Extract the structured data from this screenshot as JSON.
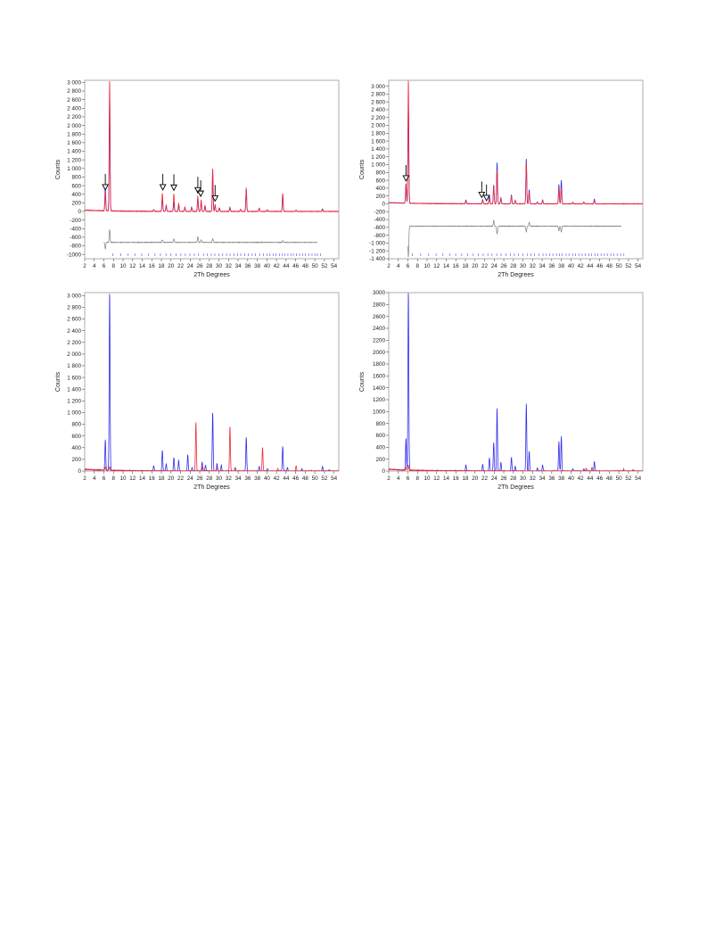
{
  "colors": {
    "calc": "#3030e8",
    "obs": "#ec2a3a",
    "diff": "#808080",
    "ticks": "#4a4aee",
    "frame": "#000000"
  },
  "chart_data": [
    {
      "type": "line",
      "xlabel": "2Th Degrees",
      "ylabel": "Counts",
      "xlim": [
        2,
        55
      ],
      "ylim": [
        -1100,
        3050
      ],
      "xticks": [
        "2",
        "4",
        "6",
        "8",
        "10",
        "12",
        "14",
        "16",
        "18",
        "20",
        "22",
        "24",
        "26",
        "28",
        "30",
        "32",
        "34",
        "36",
        "38",
        "40",
        "42",
        "44",
        "46",
        "48",
        "50",
        "52",
        "54"
      ],
      "yticks": [
        "3 000",
        "2 800",
        "2 600",
        "2 400",
        "2 200",
        "2 000",
        "1 800",
        "1 600",
        "1 400",
        "1 200",
        "1 000",
        "800",
        "600",
        "400",
        "200",
        "0",
        "-200",
        "-400",
        "-600",
        "-800",
        "-1000"
      ],
      "ytick_values": [
        3000,
        2800,
        2600,
        2400,
        2200,
        2000,
        1800,
        1600,
        1400,
        1200,
        1000,
        800,
        600,
        400,
        200,
        0,
        -200,
        -400,
        -600,
        -800,
        -1000
      ],
      "grid": false,
      "series": [
        {
          "role": "obs",
          "peaks": [
            [
              6.3,
              420
            ],
            [
              7.2,
              3050
            ],
            [
              16.4,
              30
            ],
            [
              18.2,
              420
            ],
            [
              19.0,
              150
            ],
            [
              20.6,
              410
            ],
            [
              21.6,
              180
            ],
            [
              22.9,
              100
            ],
            [
              24.3,
              80
            ],
            [
              25.6,
              350
            ],
            [
              26.3,
              270
            ],
            [
              27.1,
              140
            ],
            [
              28.7,
              1000
            ],
            [
              29.2,
              160
            ],
            [
              30.1,
              90
            ],
            [
              32.3,
              100
            ],
            [
              34.5,
              50
            ],
            [
              35.7,
              550
            ],
            [
              38.4,
              80
            ],
            [
              40.1,
              40
            ],
            [
              43.3,
              420
            ],
            [
              46.1,
              30
            ],
            [
              51.6,
              40
            ]
          ]
        },
        {
          "role": "calc",
          "peaks": [
            [
              6.3,
              560
            ],
            [
              7.2,
              2600
            ],
            [
              16.4,
              40
            ],
            [
              18.2,
              300
            ],
            [
              19.0,
              120
            ],
            [
              20.6,
              200
            ],
            [
              21.6,
              140
            ],
            [
              22.9,
              90
            ],
            [
              24.3,
              100
            ],
            [
              25.6,
              300
            ],
            [
              26.3,
              220
            ],
            [
              27.1,
              130
            ],
            [
              28.7,
              900
            ],
            [
              29.2,
              140
            ],
            [
              30.1,
              80
            ],
            [
              32.3,
              80
            ],
            [
              34.5,
              40
            ],
            [
              35.7,
              500
            ],
            [
              38.4,
              60
            ],
            [
              40.1,
              30
            ],
            [
              43.3,
              380
            ],
            [
              46.1,
              30
            ],
            [
              51.6,
              60
            ]
          ]
        }
      ],
      "diff_baseline": -720,
      "diff_peaks": [
        [
          6.3,
          -150
        ],
        [
          7.2,
          300
        ],
        [
          18.2,
          60
        ],
        [
          20.6,
          80
        ],
        [
          25.6,
          130
        ],
        [
          26.3,
          60
        ],
        [
          28.7,
          90
        ],
        [
          43.3,
          40
        ]
      ],
      "tick_range": [
        6,
        51
      ],
      "arrows": [
        6.3,
        18.3,
        20.6,
        25.6,
        26.2,
        29.2
      ]
    },
    {
      "type": "line",
      "xlabel": "2Th Degrees",
      "ylabel": "Counts",
      "xlim": [
        2,
        55
      ],
      "ylim": [
        -1400,
        3150
      ],
      "xticks": [
        "2",
        "4",
        "6",
        "8",
        "10",
        "12",
        "14",
        "16",
        "18",
        "20",
        "22",
        "24",
        "26",
        "28",
        "30",
        "32",
        "34",
        "36",
        "38",
        "40",
        "42",
        "44",
        "46",
        "48",
        "50",
        "52",
        "54"
      ],
      "yticks": [
        "3 000",
        "2 800",
        "2 600",
        "2 400",
        "2 200",
        "2 000",
        "1 800",
        "1 600",
        "1 400",
        "1 200",
        "1 000",
        "800",
        "600",
        "400",
        "200",
        "0",
        "-200",
        "-400",
        "-600",
        "-800",
        "-1 000",
        "-1 200",
        "-1 400"
      ],
      "ytick_values": [
        3000,
        2800,
        2600,
        2400,
        2200,
        2000,
        1800,
        1600,
        1400,
        1200,
        1000,
        800,
        600,
        400,
        200,
        0,
        -200,
        -400,
        -600,
        -800,
        -1000,
        -1200,
        -1400
      ],
      "grid": false,
      "series": [
        {
          "role": "obs",
          "peaks": [
            [
              5.6,
              500
            ],
            [
              6.1,
              3150
            ],
            [
              18.1,
              70
            ],
            [
              21.6,
              80
            ],
            [
              23.0,
              120
            ],
            [
              23.9,
              460
            ],
            [
              24.6,
              850
            ],
            [
              25.4,
              110
            ],
            [
              27.6,
              200
            ],
            [
              28.4,
              90
            ],
            [
              30.7,
              1050
            ],
            [
              31.3,
              300
            ],
            [
              33.0,
              40
            ],
            [
              34.1,
              80
            ],
            [
              37.5,
              400
            ],
            [
              38.0,
              400
            ],
            [
              40.4,
              30
            ],
            [
              42.7,
              40
            ],
            [
              44.9,
              80
            ]
          ]
        },
        {
          "role": "calc",
          "peaks": [
            [
              5.6,
              480
            ],
            [
              6.1,
              2500
            ],
            [
              18.1,
              100
            ],
            [
              21.6,
              110
            ],
            [
              23.0,
              220
            ],
            [
              23.9,
              480
            ],
            [
              24.6,
              1050
            ],
            [
              25.4,
              150
            ],
            [
              27.6,
              230
            ],
            [
              28.4,
              80
            ],
            [
              30.7,
              1150
            ],
            [
              31.3,
              360
            ],
            [
              33.0,
              50
            ],
            [
              34.1,
              100
            ],
            [
              37.5,
              500
            ],
            [
              38.0,
              600
            ],
            [
              40.4,
              40
            ],
            [
              42.7,
              50
            ],
            [
              44.9,
              120
            ]
          ]
        }
      ],
      "diff_baseline": -570,
      "diff_peaks": [
        [
          5.6,
          300
        ],
        [
          6.1,
          -800
        ],
        [
          23.9,
          150
        ],
        [
          24.6,
          -200
        ],
        [
          30.7,
          -150
        ],
        [
          31.3,
          100
        ],
        [
          37.5,
          -120
        ],
        [
          38.0,
          -150
        ]
      ],
      "tick_range": [
        5,
        51
      ],
      "arrows": [
        5.6,
        21.4,
        22.4
      ]
    },
    {
      "type": "line",
      "xlabel": "2Th Degrees",
      "ylabel": "Counts",
      "xlim": [
        2,
        55
      ],
      "ylim": [
        0,
        3050
      ],
      "xticks": [
        "2",
        "4",
        "6",
        "8",
        "10",
        "12",
        "14",
        "16",
        "18",
        "20",
        "22",
        "24",
        "26",
        "28",
        "30",
        "32",
        "34",
        "36",
        "38",
        "40",
        "42",
        "44",
        "46",
        "48",
        "50",
        "52",
        "54"
      ],
      "yticks": [
        "3 000",
        "2 800",
        "2 600",
        "2 400",
        "2 200",
        "2 000",
        "1 800",
        "1 600",
        "1 400",
        "1 200",
        "1 000",
        "800",
        "600",
        "400",
        "200",
        "0"
      ],
      "ytick_values": [
        3000,
        2800,
        2600,
        2400,
        2200,
        2000,
        1800,
        1600,
        1400,
        1200,
        1000,
        800,
        600,
        400,
        200,
        0
      ],
      "grid": false,
      "series": [
        {
          "role": "obs",
          "peaks": [
            [
              6.3,
              50
            ],
            [
              7.2,
              60
            ],
            [
              25.2,
              830
            ],
            [
              32.3,
              760
            ],
            [
              39.1,
              400
            ],
            [
              46.1,
              90
            ],
            [
              26.6,
              80
            ],
            [
              29.6,
              60
            ],
            [
              33.4,
              40
            ],
            [
              42.3,
              40
            ]
          ]
        },
        {
          "role": "calc",
          "peaks": [
            [
              6.3,
              520
            ],
            [
              7.2,
              3050
            ],
            [
              16.4,
              90
            ],
            [
              18.2,
              350
            ],
            [
              19.0,
              120
            ],
            [
              20.6,
              230
            ],
            [
              21.6,
              180
            ],
            [
              23.5,
              280
            ],
            [
              24.4,
              60
            ],
            [
              26.5,
              150
            ],
            [
              27.2,
              100
            ],
            [
              28.7,
              1000
            ],
            [
              29.6,
              130
            ],
            [
              30.5,
              100
            ],
            [
              33.4,
              60
            ],
            [
              35.7,
              580
            ],
            [
              38.4,
              80
            ],
            [
              40.1,
              40
            ],
            [
              43.3,
              420
            ],
            [
              44.3,
              60
            ],
            [
              47.3,
              40
            ],
            [
              51.6,
              80
            ],
            [
              53.0,
              20
            ]
          ]
        }
      ]
    },
    {
      "type": "line",
      "xlabel": "2Th Degrees",
      "ylabel": "Counts",
      "xlim": [
        2,
        55
      ],
      "ylim": [
        0,
        3000
      ],
      "xticks": [
        "2",
        "4",
        "6",
        "8",
        "10",
        "12",
        "14",
        "16",
        "18",
        "20",
        "22",
        "24",
        "26",
        "28",
        "30",
        "32",
        "34",
        "36",
        "38",
        "40",
        "42",
        "44",
        "46",
        "48",
        "50",
        "52",
        "54"
      ],
      "yticks": [
        "3000",
        "2800",
        "2600",
        "2400",
        "2200",
        "2000",
        "1800",
        "1600",
        "1400",
        "1200",
        "1000",
        "800",
        "600",
        "400",
        "200",
        "0"
      ],
      "ytick_values": [
        3000,
        2800,
        2600,
        2400,
        2200,
        2000,
        1800,
        1600,
        1400,
        1200,
        1000,
        800,
        600,
        400,
        200,
        0
      ],
      "grid": false,
      "series": [
        {
          "role": "obs",
          "peaks": [
            [
              5.6,
              40
            ],
            [
              6.1,
              80
            ],
            [
              43.2,
              50
            ],
            [
              44.4,
              60
            ],
            [
              51.0,
              30
            ],
            [
              53.0,
              25
            ]
          ]
        },
        {
          "role": "calc",
          "peaks": [
            [
              5.6,
              530
            ],
            [
              6.1,
              3000
            ],
            [
              18.1,
              100
            ],
            [
              21.6,
              110
            ],
            [
              23.0,
              220
            ],
            [
              23.9,
              480
            ],
            [
              24.6,
              1050
            ],
            [
              25.4,
              150
            ],
            [
              27.6,
              230
            ],
            [
              28.4,
              80
            ],
            [
              30.7,
              1130
            ],
            [
              31.3,
              330
            ],
            [
              33.0,
              50
            ],
            [
              34.1,
              100
            ],
            [
              37.5,
              500
            ],
            [
              38.0,
              580
            ],
            [
              40.4,
              40
            ],
            [
              42.7,
              40
            ],
            [
              44.9,
              160
            ]
          ]
        }
      ]
    }
  ]
}
